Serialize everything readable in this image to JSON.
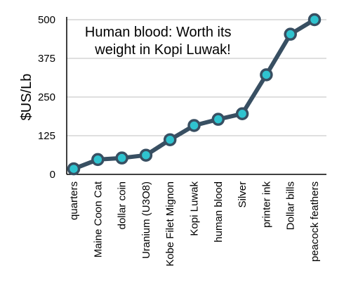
{
  "chart_data": {
    "type": "line",
    "title_lines": [
      "Human blood: Worth its",
      "weight in Kopi Luwak!"
    ],
    "ylabel": "$US/Lb",
    "xlabel": "",
    "ylim": [
      0,
      500
    ],
    "yticks": [
      0,
      125,
      250,
      375,
      500
    ],
    "categories": [
      "quarters",
      "Maine Coon Cat",
      "dollar coin",
      "Uranium (U3O8)",
      "Kobe Filet Mignon",
      "Kopi Luwak",
      "human blood",
      "Silver",
      "printer ink",
      "Dollar bills",
      "peacock feathers"
    ],
    "series": [
      {
        "values": [
          18,
          48,
          53,
          62,
          112,
          158,
          178,
          196,
          322,
          453,
          500
        ]
      }
    ],
    "grid": true,
    "legend": "none",
    "colors": {
      "line": "#384f62",
      "marker_fill": "#2fc3cf",
      "marker_stroke": "#384f62",
      "grid": "#bfbfbf",
      "axis": "#000000"
    }
  }
}
